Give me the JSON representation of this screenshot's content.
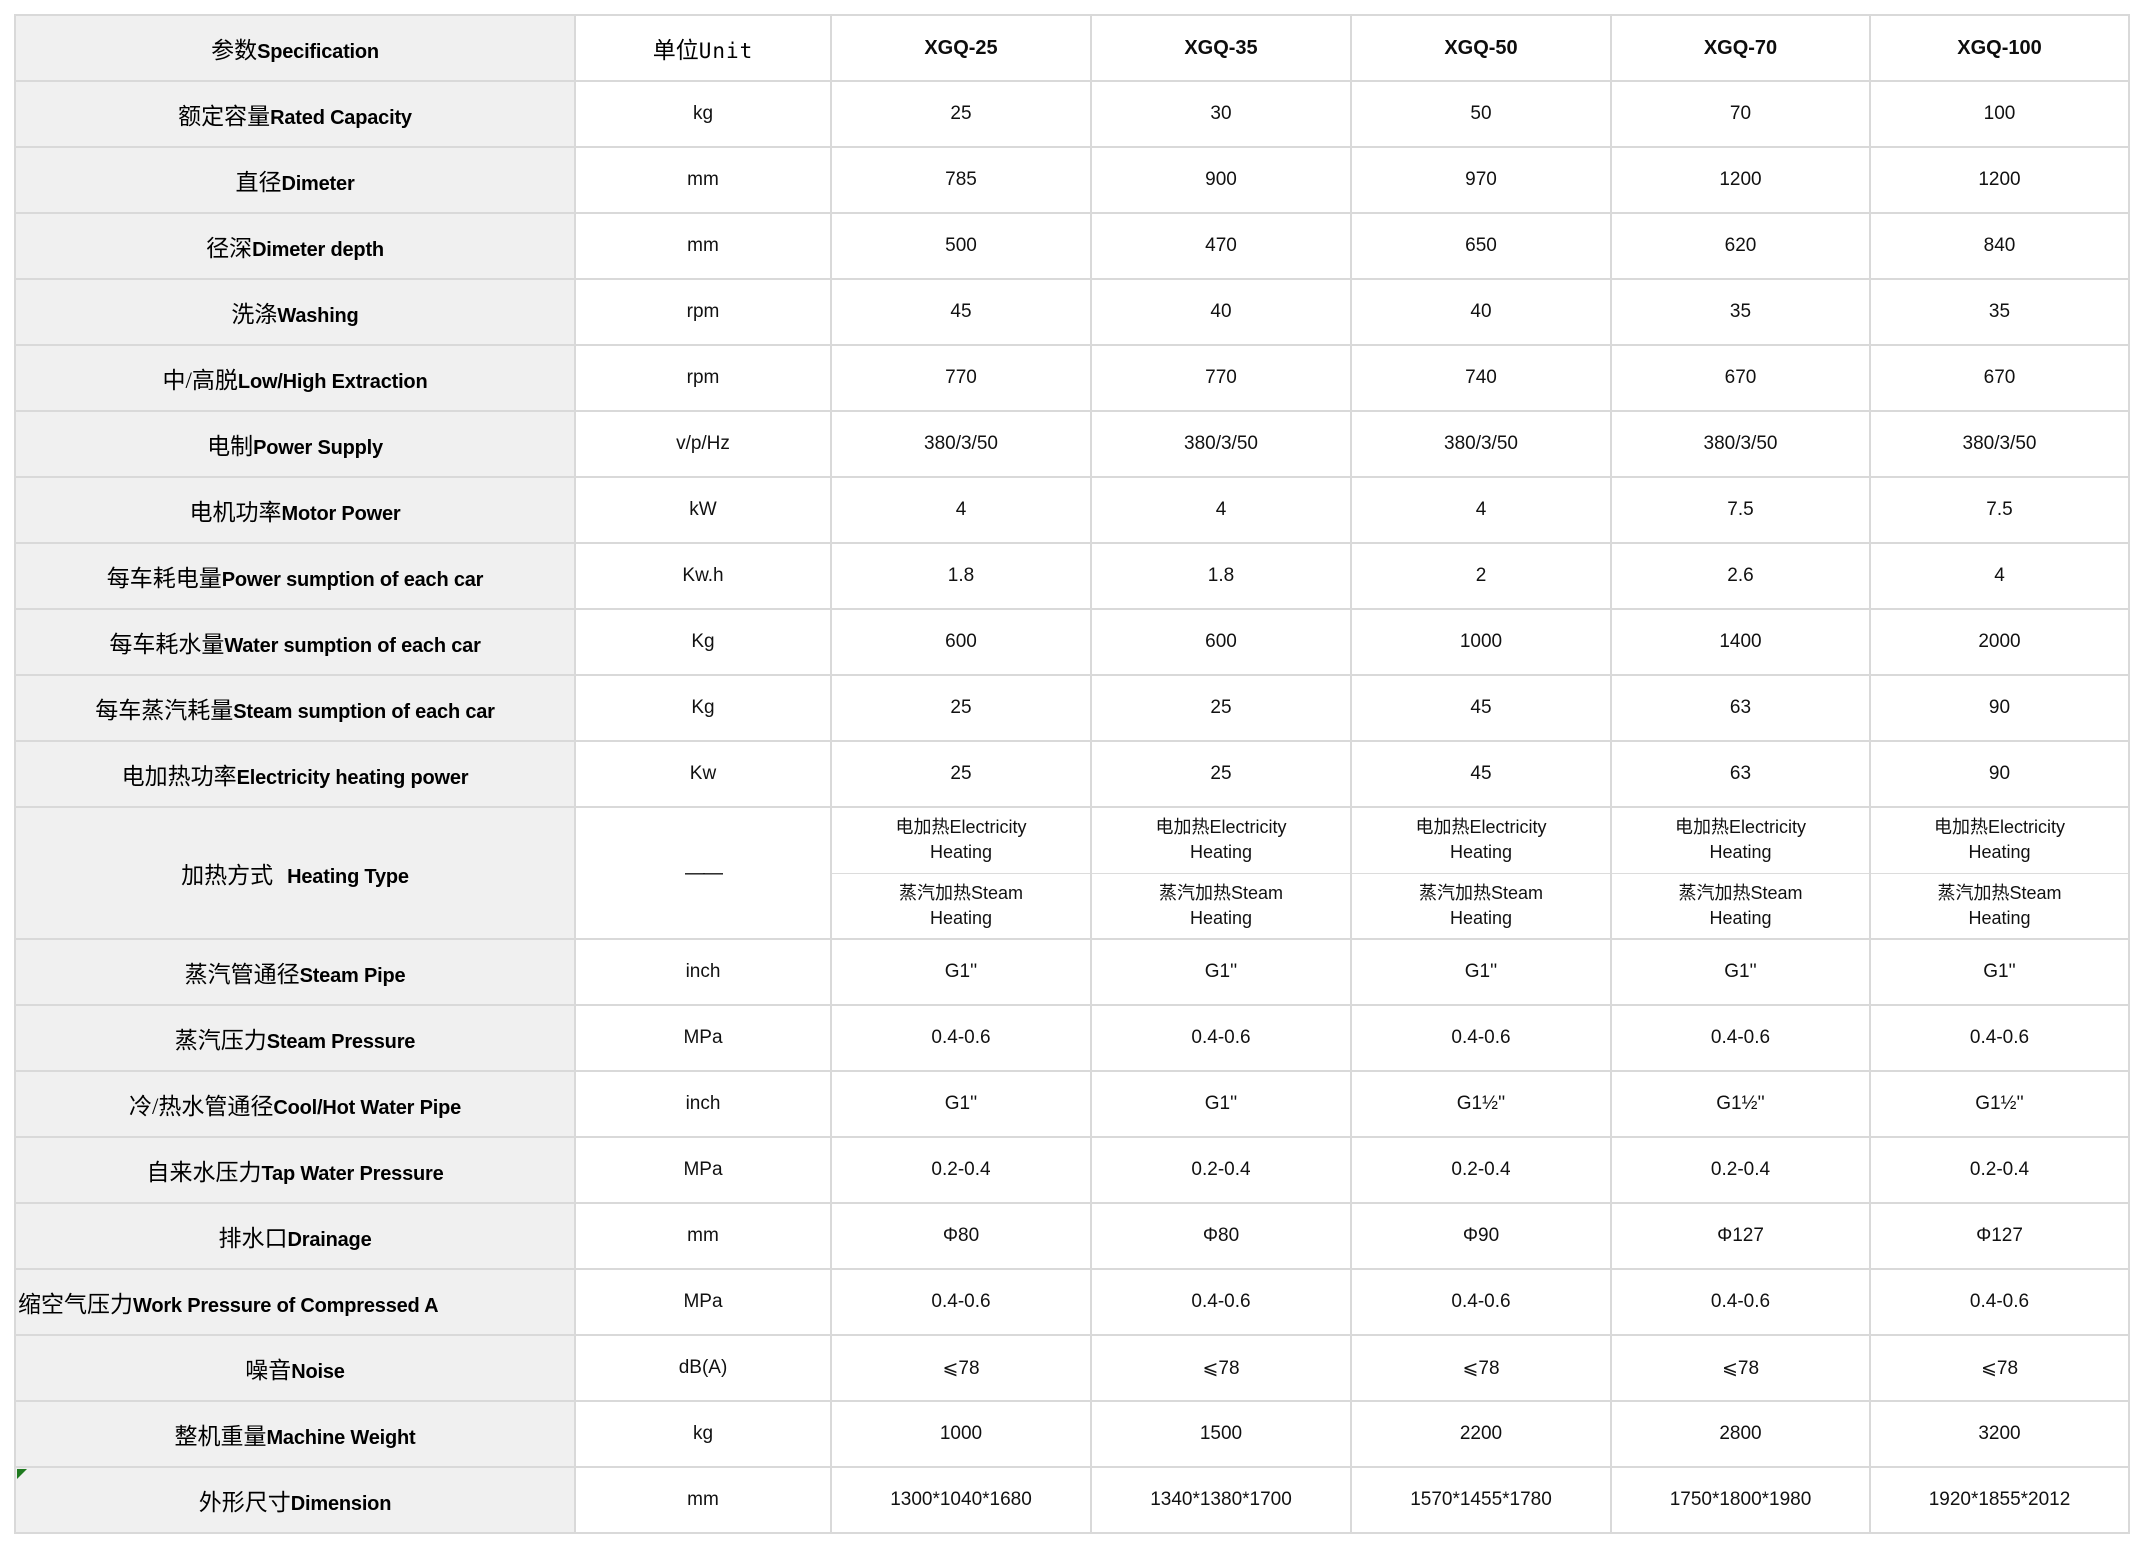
{
  "table": {
    "colors": {
      "label_bg": "#f0f0f0",
      "border": "#d9d9d9",
      "cell_bg": "#ffffff",
      "text": "#000000",
      "comment_marker_green": "#1f7a1f"
    },
    "header": {
      "spec_zh": "参数",
      "spec_en": "Specification",
      "unit_zh": "单位",
      "unit_en": "Unit",
      "models": [
        "XGQ-25",
        "XGQ-35",
        "XGQ-50",
        "XGQ-70",
        "XGQ-100"
      ]
    },
    "rows": [
      {
        "zh": "额定容量",
        "en": "Rated Capacity",
        "unit": "kg",
        "values": [
          "25",
          "30",
          "50",
          "70",
          "100"
        ]
      },
      {
        "zh": "直径",
        "en": "Dimeter",
        "unit": "mm",
        "values": [
          "785",
          "900",
          "970",
          "1200",
          "1200"
        ]
      },
      {
        "zh": "径深",
        "en": "Dimeter depth",
        "unit": "mm",
        "values": [
          "500",
          "470",
          "650",
          "620",
          "840"
        ]
      },
      {
        "zh": "洗涤",
        "en": "Washing",
        "unit": "rpm",
        "values": [
          "45",
          "40",
          "40",
          "35",
          "35"
        ]
      },
      {
        "zh": "中/高脱",
        "en": "Low/High Extraction",
        "unit": "rpm",
        "values": [
          "770",
          "770",
          "740",
          "670",
          "670"
        ]
      },
      {
        "zh": "电制",
        "en": "Power Supply",
        "unit": "v/p/Hz",
        "values": [
          "380/3/50",
          "380/3/50",
          "380/3/50",
          "380/3/50",
          "380/3/50"
        ]
      },
      {
        "zh": "电机功率",
        "en": "Motor Power",
        "unit": "kW",
        "values": [
          "4",
          "4",
          "4",
          "7.5",
          "7.5"
        ]
      },
      {
        "zh": "每车耗电量",
        "en": "Power sumption of each car",
        "unit": "Kw.h",
        "values": [
          "1.8",
          "1.8",
          "2",
          "2.6",
          "4"
        ]
      },
      {
        "zh": "每车耗水量",
        "en": "Water sumption of each car",
        "unit": "Kg",
        "values": [
          "600",
          "600",
          "1000",
          "1400",
          "2000"
        ]
      },
      {
        "zh": "每车蒸汽耗量",
        "en": "Steam sumption of each car",
        "unit": "Kg",
        "values": [
          "25",
          "25",
          "45",
          "63",
          "90"
        ]
      },
      {
        "zh": "电加热功率",
        "en": "Electricity heating power",
        "unit": "Kw",
        "values": [
          "25",
          "25",
          "45",
          "63",
          "90"
        ]
      },
      {
        "type": "double",
        "zh": "加热方式",
        "en": "Heating Type",
        "unit": "——",
        "options": [
          {
            "zh": "电加热",
            "en": "Electricity Heating"
          },
          {
            "zh": "蒸汽加热",
            "en": "Steam Heating"
          }
        ]
      },
      {
        "zh": "蒸汽管通径",
        "en": "Steam Pipe",
        "unit": "inch",
        "values": [
          "G1''",
          "G1''",
          "G1''",
          "G1''",
          "G1''"
        ]
      },
      {
        "zh": "蒸汽压力",
        "en": "Steam Pressure",
        "unit": "MPa",
        "values": [
          "0.4-0.6",
          "0.4-0.6",
          "0.4-0.6",
          "0.4-0.6",
          "0.4-0.6"
        ]
      },
      {
        "zh": "冷/热水管通径",
        "en": "Cool/Hot Water Pipe",
        "unit": "inch",
        "values": [
          "G1''",
          "G1''",
          "G1½''",
          "G1½''",
          "G1½''"
        ]
      },
      {
        "zh": "自来水压力",
        "en": "Tap Water Pressure",
        "unit": "MPa",
        "values": [
          "0.2-0.4",
          "0.2-0.4",
          "0.2-0.4",
          "0.2-0.4",
          "0.2-0.4"
        ]
      },
      {
        "zh": "排水口",
        "en": "Drainage",
        "unit": "mm",
        "values": [
          "Φ80",
          "Φ80",
          "Φ90",
          "Φ127",
          "Φ127"
        ]
      },
      {
        "zh": "缩空气压力",
        "en": "Work Pressure of Compressed A",
        "unit": "MPa",
        "align": "left",
        "values": [
          "0.4-0.6",
          "0.4-0.6",
          "0.4-0.6",
          "0.4-0.6",
          "0.4-0.6"
        ]
      },
      {
        "zh": "噪音",
        "en": "Noise",
        "unit": "dB(A)",
        "values": [
          "⩽78",
          "⩽78",
          "⩽78",
          "⩽78",
          "⩽78"
        ]
      },
      {
        "zh": "整机重量",
        "en": "Machine Weight",
        "unit": "kg",
        "values": [
          "1000",
          "1500",
          "2200",
          "2800",
          "3200"
        ]
      },
      {
        "zh": "外形尺寸",
        "en": "Dimension",
        "unit": "mm",
        "marker": true,
        "values": [
          "1300*1040*1680",
          "1340*1380*1700",
          "1570*1455*1780",
          "1750*1800*1980",
          "1920*1855*2012"
        ]
      }
    ]
  }
}
